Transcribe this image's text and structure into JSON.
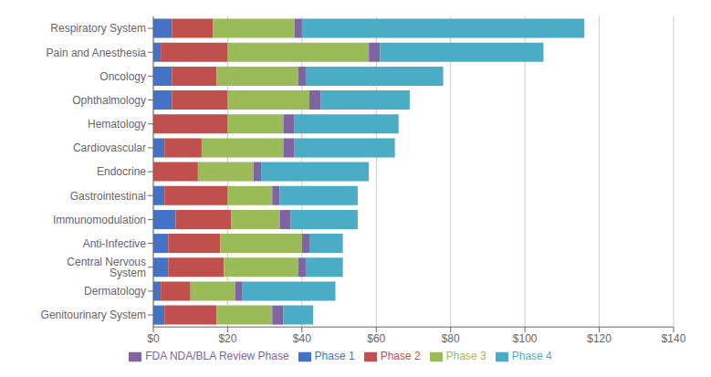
{
  "chart_data": {
    "type": "bar",
    "orientation": "horizontal",
    "stacked": true,
    "categories": [
      "Genitourinary System",
      "Dermatology",
      "Central Nervous System",
      "Anti-Infective",
      "Immunomodulation",
      "Gastrointestinal",
      "Endocrine",
      "Cardiovascular",
      "Hematology",
      "Ophthalmology",
      "Oncology",
      "Pain and Anesthesia",
      "Respiratory System"
    ],
    "series": [
      {
        "name": "Phase 1",
        "color": "#4472C4",
        "values": [
          3,
          2,
          4,
          4,
          6,
          3,
          0,
          3,
          0,
          5,
          5,
          2,
          5
        ]
      },
      {
        "name": "Phase 2",
        "color": "#C0504D",
        "values": [
          14,
          8,
          15,
          14,
          15,
          17,
          12,
          10,
          20,
          15,
          12,
          18,
          11
        ]
      },
      {
        "name": "Phase 3",
        "color": "#9BBB59",
        "values": [
          15,
          12,
          20,
          22,
          13,
          12,
          15,
          22,
          15,
          22,
          22,
          38,
          22
        ]
      },
      {
        "name": "FDA NDA/BLA Review Phase",
        "color": "#8064A2",
        "values": [
          3,
          2,
          2,
          2,
          3,
          2,
          2,
          3,
          3,
          3,
          2,
          3,
          2
        ]
      },
      {
        "name": "Phase 4",
        "color": "#4BACC6",
        "values": [
          8,
          25,
          10,
          9,
          18,
          21,
          29,
          27,
          28,
          24,
          37,
          44,
          76
        ]
      }
    ],
    "xlim": [
      0,
      140
    ],
    "xticks": [
      {
        "value": 0,
        "label": "$0"
      },
      {
        "value": 20,
        "label": "$20"
      },
      {
        "value": 40,
        "label": "$40"
      },
      {
        "value": 60,
        "label": "$60"
      },
      {
        "value": 80,
        "label": "$80"
      },
      {
        "value": 100,
        "label": "$100"
      },
      {
        "value": 120,
        "label": "$120"
      },
      {
        "value": 140,
        "label": "$140"
      }
    ],
    "grid": true,
    "legend": "bottom"
  }
}
